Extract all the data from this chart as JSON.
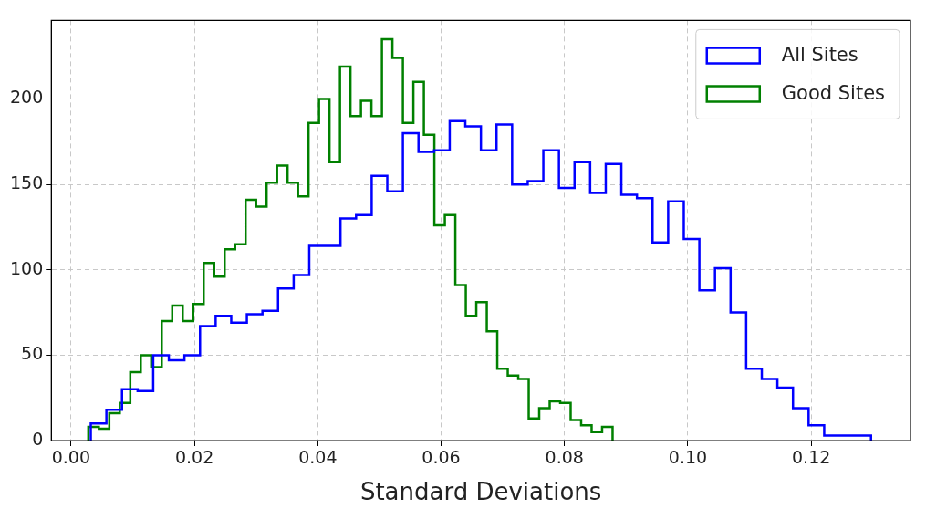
{
  "chart_data": {
    "type": "step",
    "xlabel": "Standard Deviations",
    "xlim": [
      -0.0032,
      0.1361
    ],
    "ylim": [
      0,
      246
    ],
    "xticks": [
      {
        "value": 0,
        "label": "0.00"
      },
      {
        "value": 0.02,
        "label": "0.02"
      },
      {
        "value": 0.04,
        "label": "0.04"
      },
      {
        "value": 0.06,
        "label": "0.06"
      },
      {
        "value": 0.08,
        "label": "0.08"
      },
      {
        "value": 0.1,
        "label": "0.10"
      },
      {
        "value": 0.12,
        "label": "0.12"
      }
    ],
    "yticks": [
      0,
      50,
      100,
      150,
      200
    ],
    "grid": true,
    "legend": "top right",
    "series": [
      {
        "name": "All Sites",
        "color": "#0000ff",
        "x": [
          0.0032,
          0.0032,
          0.00573,
          0.00826,
          0.01079,
          0.01332,
          0.01585,
          0.01838,
          0.02091,
          0.02344,
          0.02597,
          0.0285,
          0.03103,
          0.03356,
          0.03609,
          0.03862,
          0.04115,
          0.04368,
          0.04621,
          0.04874,
          0.05127,
          0.0538,
          0.05633,
          0.05886,
          0.06139,
          0.06392,
          0.06645,
          0.06898,
          0.07151,
          0.07404,
          0.07657,
          0.0791,
          0.08163,
          0.08416,
          0.08669,
          0.08922,
          0.09175,
          0.09428,
          0.09681,
          0.09934,
          0.10187,
          0.1044,
          0.10693,
          0.10946,
          0.11199,
          0.11452,
          0.11705,
          0.11958,
          0.12211,
          0.12464,
          0.12717,
          0.1297
        ],
        "values": [
          0,
          10,
          18,
          30,
          29,
          50,
          47,
          50,
          67,
          73,
          69,
          74,
          76,
          89,
          97,
          114,
          114,
          130,
          132,
          155,
          146,
          180,
          169,
          170,
          187,
          184,
          170,
          185,
          150,
          152,
          170,
          148,
          163,
          145,
          162,
          144,
          142,
          116,
          140,
          118,
          88,
          101,
          75,
          42,
          36,
          31,
          19,
          9,
          3,
          3,
          3,
          0
        ]
      },
      {
        "name": "Good Sites",
        "color": "#008000",
        "x": [
          0.0028,
          0.0028,
          0.0045,
          0.0062,
          0.0079,
          0.0096,
          0.0113,
          0.013,
          0.0147,
          0.0164,
          0.0181,
          0.0198,
          0.0215,
          0.0232,
          0.0249,
          0.0266,
          0.0283,
          0.03,
          0.0317,
          0.0334,
          0.0351,
          0.0368,
          0.0385,
          0.0402,
          0.0419,
          0.0436,
          0.0453,
          0.047,
          0.0487,
          0.0504,
          0.0521,
          0.0538,
          0.0555,
          0.0572,
          0.0589,
          0.0606,
          0.0623,
          0.064,
          0.0657,
          0.0674,
          0.0691,
          0.0708,
          0.0725,
          0.0742,
          0.0759,
          0.0776,
          0.0793,
          0.081,
          0.0827,
          0.0844,
          0.0861,
          0.0878
        ],
        "values": [
          0,
          8,
          7,
          16,
          22,
          40,
          50,
          43,
          70,
          79,
          70,
          80,
          104,
          96,
          112,
          115,
          141,
          137,
          151,
          161,
          151,
          143,
          186,
          200,
          163,
          219,
          190,
          199,
          190,
          235,
          224,
          186,
          210,
          179,
          126,
          132,
          91,
          73,
          81,
          64,
          42,
          38,
          36,
          13,
          19,
          23,
          22,
          12,
          9,
          5,
          8,
          0
        ]
      }
    ]
  }
}
